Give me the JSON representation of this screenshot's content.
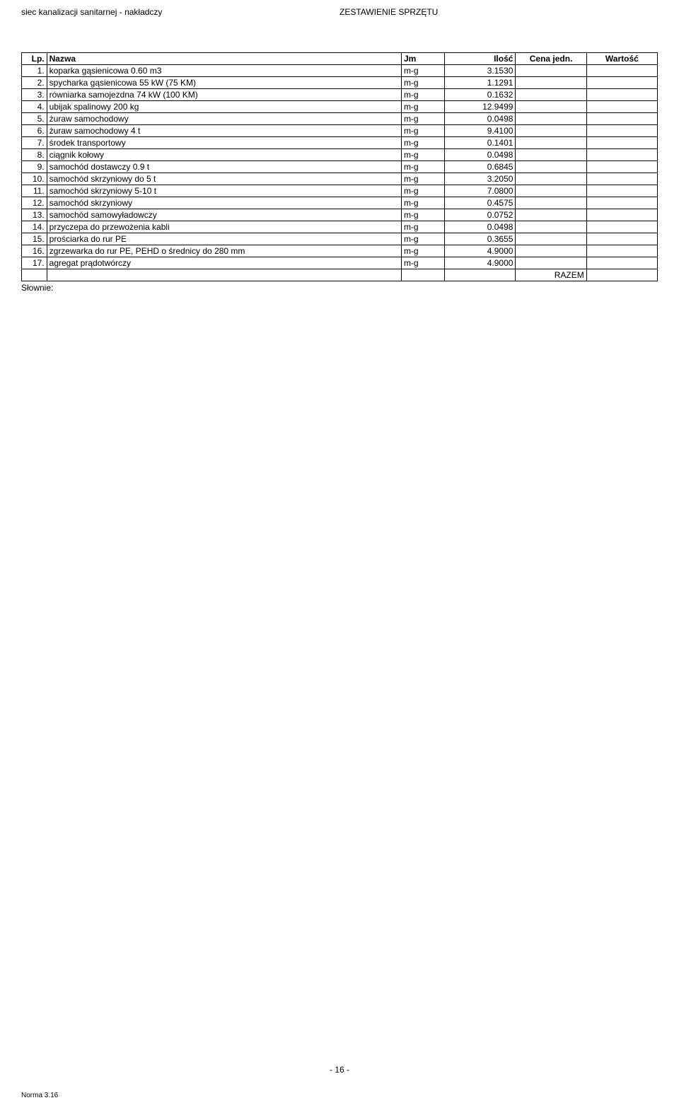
{
  "header": {
    "left": "siec kanalizacji sanitarnej - nakładczy",
    "center": "ZESTAWIENIE SPRZĘTU"
  },
  "table": {
    "columns": {
      "lp": "Lp.",
      "nazwa": "Nazwa",
      "jm": "Jm",
      "ilosc": "Ilość",
      "cena": "Cena jedn.",
      "wartosc": "Wartość"
    },
    "rows": [
      {
        "lp": "1.",
        "nazwa": "koparka gąsienicowa 0.60 m3",
        "jm": "m-g",
        "ilosc": "3.1530",
        "cena": "",
        "wartosc": ""
      },
      {
        "lp": "2.",
        "nazwa": "spycharka gąsienicowa 55 kW (75 KM)",
        "jm": "m-g",
        "ilosc": "1.1291",
        "cena": "",
        "wartosc": ""
      },
      {
        "lp": "3.",
        "nazwa": "równiarka samojezdna 74 kW (100 KM)",
        "jm": "m-g",
        "ilosc": "0.1632",
        "cena": "",
        "wartosc": ""
      },
      {
        "lp": "4.",
        "nazwa": "ubijak spalinowy 200 kg",
        "jm": "m-g",
        "ilosc": "12.9499",
        "cena": "",
        "wartosc": ""
      },
      {
        "lp": "5.",
        "nazwa": "żuraw samochodowy",
        "jm": "m-g",
        "ilosc": "0.0498",
        "cena": "",
        "wartosc": ""
      },
      {
        "lp": "6.",
        "nazwa": "żuraw samochodowy 4 t",
        "jm": "m-g",
        "ilosc": "9.4100",
        "cena": "",
        "wartosc": ""
      },
      {
        "lp": "7.",
        "nazwa": "środek transportowy",
        "jm": "m-g",
        "ilosc": "0.1401",
        "cena": "",
        "wartosc": ""
      },
      {
        "lp": "8.",
        "nazwa": "ciągnik kołowy",
        "jm": "m-g",
        "ilosc": "0.0498",
        "cena": "",
        "wartosc": ""
      },
      {
        "lp": "9.",
        "nazwa": "samochód dostawczy 0.9 t",
        "jm": "m-g",
        "ilosc": "0.6845",
        "cena": "",
        "wartosc": ""
      },
      {
        "lp": "10.",
        "nazwa": "samochód skrzyniowy do 5 t",
        "jm": "m-g",
        "ilosc": "3.2050",
        "cena": "",
        "wartosc": ""
      },
      {
        "lp": "11.",
        "nazwa": "samochód skrzyniowy 5-10 t",
        "jm": "m-g",
        "ilosc": "7.0800",
        "cena": "",
        "wartosc": ""
      },
      {
        "lp": "12.",
        "nazwa": "samochód skrzyniowy",
        "jm": "m-g",
        "ilosc": "0.4575",
        "cena": "",
        "wartosc": ""
      },
      {
        "lp": "13.",
        "nazwa": "samochód samowyładowczy",
        "jm": "m-g",
        "ilosc": "0.0752",
        "cena": "",
        "wartosc": ""
      },
      {
        "lp": "14.",
        "nazwa": "przyczepa do przewożenia kabli",
        "jm": "m-g",
        "ilosc": "0.0498",
        "cena": "",
        "wartosc": ""
      },
      {
        "lp": "15.",
        "nazwa": "prościarka do rur PE",
        "jm": "m-g",
        "ilosc": "0.3655",
        "cena": "",
        "wartosc": ""
      },
      {
        "lp": "16.",
        "nazwa": "zgrzewarka do rur PE, PEHD o średnicy do 280 mm",
        "jm": "m-g",
        "ilosc": "4.9000",
        "cena": "",
        "wartosc": ""
      },
      {
        "lp": "17.",
        "nazwa": "agregat prądotwórczy",
        "jm": "m-g",
        "ilosc": "4.9000",
        "cena": "",
        "wartosc": ""
      }
    ],
    "razem_label": "RAZEM"
  },
  "slownie_label": "Słownie:",
  "footer": {
    "page": "- 16 -",
    "norma": "Norma 3.16"
  }
}
